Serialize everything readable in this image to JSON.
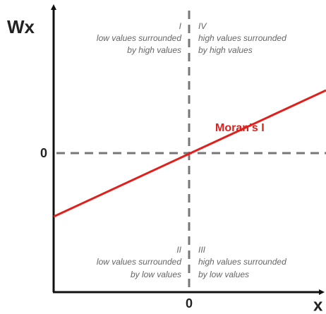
{
  "axes": {
    "y_label": "Wx",
    "x_label": "x",
    "y_origin": "0",
    "x_origin": "0"
  },
  "quadrants": [
    {
      "numeral": "I",
      "lines": [
        "low values surrounded",
        "by high values"
      ]
    },
    {
      "numeral": "IV",
      "lines": [
        "high values surrounded",
        "by high values"
      ]
    },
    {
      "numeral": "II",
      "lines": [
        "low values surrounded",
        "by low values"
      ]
    },
    {
      "numeral": "III",
      "lines": [
        "high values surrounded",
        "by low values"
      ]
    }
  ],
  "line_label": "Moran’s I"
}
